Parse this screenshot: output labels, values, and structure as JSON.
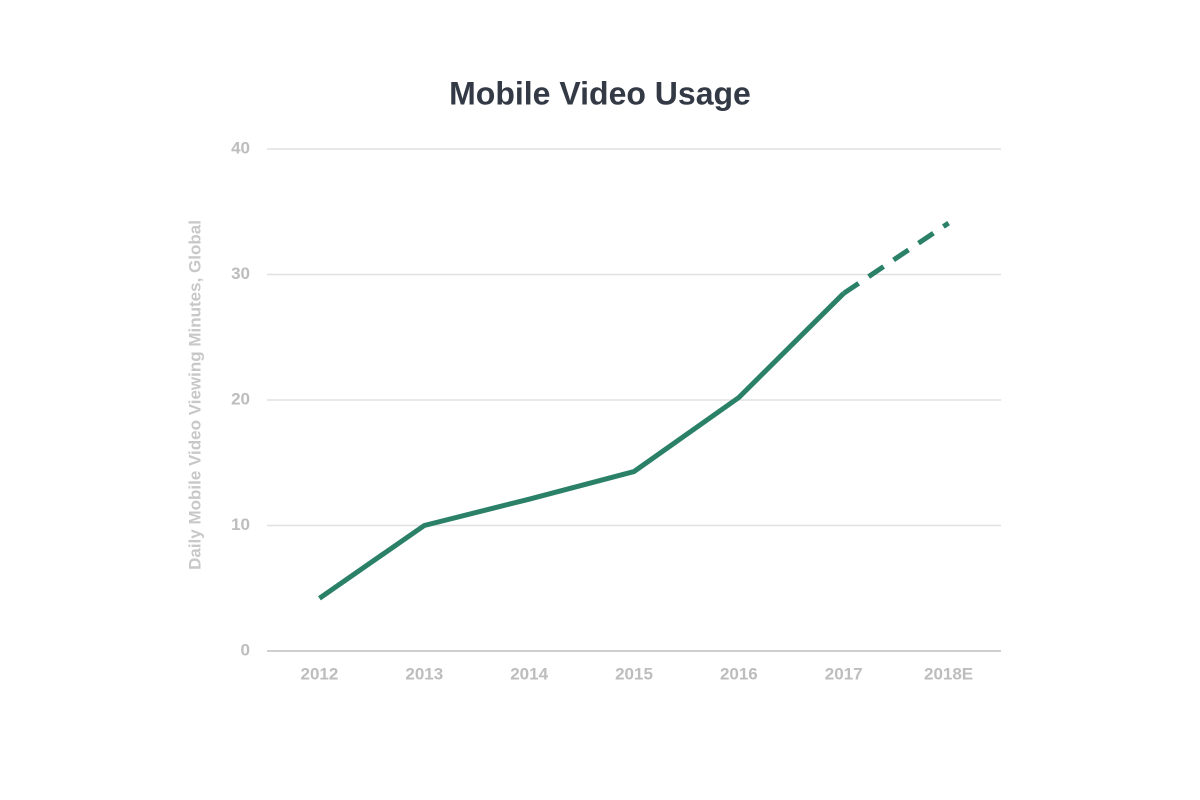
{
  "chart_data": {
    "type": "line",
    "title": "Mobile Video Usage",
    "y_label": "Daily Mobile Video Viewing Minutes, Global",
    "categories": [
      "2012",
      "2013",
      "2014",
      "2015",
      "2016",
      "2017",
      "2018E"
    ],
    "values": [
      4.2,
      10,
      12.1,
      14.3,
      20.2,
      28.5,
      34.1
    ],
    "point_styles": [
      "solid",
      "solid",
      "solid",
      "solid",
      "solid",
      "solid",
      "dashed"
    ],
    "color": "#2a8168",
    "ylim": [
      0,
      40
    ],
    "yticks": [
      0,
      10,
      20,
      30,
      40
    ],
    "grid": true
  }
}
